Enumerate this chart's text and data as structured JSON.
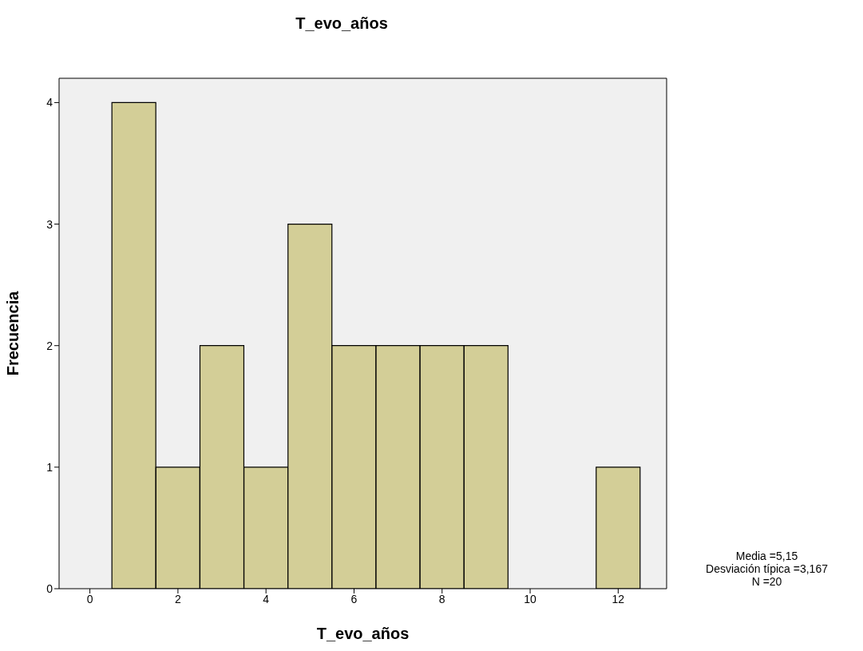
{
  "chart_data": {
    "type": "histogram",
    "title": "T_evo_años",
    "xlabel": "T_evo_años",
    "ylabel": "Frecuencia",
    "bins": [
      0.5,
      1.5,
      2.5,
      3.5,
      4.5,
      5.5,
      6.5,
      7.5,
      8.5,
      9.5,
      10.5,
      11.5,
      12.5
    ],
    "values": [
      4,
      1,
      2,
      1,
      3,
      2,
      2,
      2,
      2,
      0,
      0,
      1
    ],
    "color": "#d3ce97",
    "xlim": [
      -0.7,
      13.1
    ],
    "xticks": [
      0,
      2,
      4,
      6,
      8,
      10,
      12
    ],
    "ylim": [
      0,
      4.2
    ],
    "yticks": [
      0,
      1,
      2,
      3,
      4
    ],
    "grid": false,
    "annotations": [
      "Media =5,15",
      "Desviación típica =3,167",
      "N =20"
    ]
  }
}
